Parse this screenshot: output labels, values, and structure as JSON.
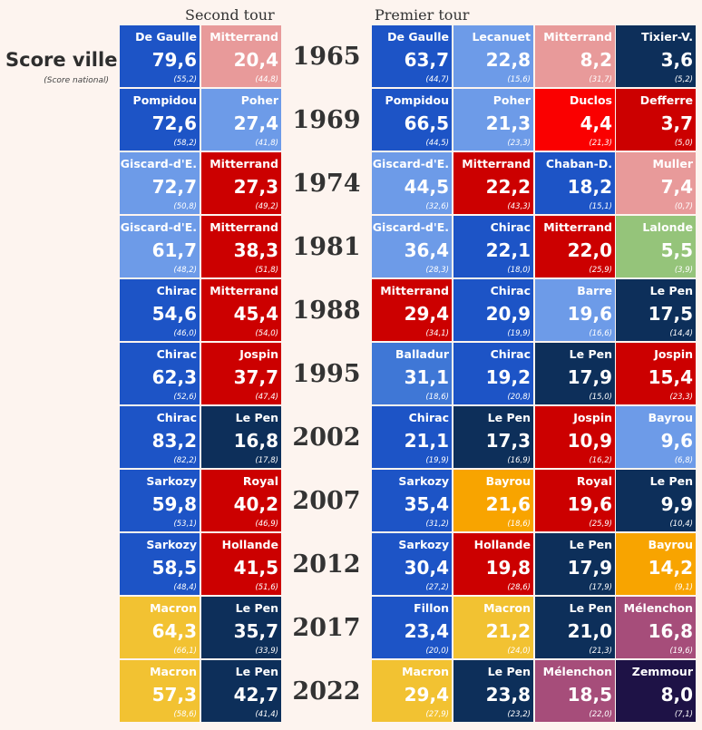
{
  "header": {
    "second_tour": "Second tour",
    "premier_tour": "Premier tour",
    "score_title": "Score ville",
    "score_subtitle": "(Score national)"
  },
  "colors": {
    "blue": "#1d54c6",
    "lightblue": "#6d9be8",
    "midblue": "#3f77d6",
    "pink": "#e89a9a",
    "red": "#cc0000",
    "brightred": "#fa0000",
    "navy": "#0d2f5a",
    "green": "#95c47a",
    "orange": "#f8a400",
    "yellow": "#f2c232",
    "mauve": "#a64d7a",
    "darkpurple": "#1e1246"
  },
  "chart_data": {
    "type": "table",
    "title": "Score ville",
    "subtitle": "(Score national)",
    "rows": [
      {
        "year": "1965",
        "second": [
          {
            "name": "De Gaulle",
            "score": "79,6",
            "nat": "(55,2)",
            "color": "blue"
          },
          {
            "name": "Mitterrand",
            "score": "20,4",
            "nat": "(44,8)",
            "color": "pink"
          }
        ],
        "first": [
          {
            "name": "De Gaulle",
            "score": "63,7",
            "nat": "(44,7)",
            "color": "blue"
          },
          {
            "name": "Lecanuet",
            "score": "22,8",
            "nat": "(15,6)",
            "color": "lightblue"
          },
          {
            "name": "Mitterrand",
            "score": "8,2",
            "nat": "(31,7)",
            "color": "pink"
          },
          {
            "name": "Tixier-V.",
            "score": "3,6",
            "nat": "(5,2)",
            "color": "navy"
          }
        ]
      },
      {
        "year": "1969",
        "second": [
          {
            "name": "Pompidou",
            "score": "72,6",
            "nat": "(58,2)",
            "color": "blue"
          },
          {
            "name": "Poher",
            "score": "27,4",
            "nat": "(41,8)",
            "color": "lightblue"
          }
        ],
        "first": [
          {
            "name": "Pompidou",
            "score": "66,5",
            "nat": "(44,5)",
            "color": "blue"
          },
          {
            "name": "Poher",
            "score": "21,3",
            "nat": "(23,3)",
            "color": "lightblue"
          },
          {
            "name": "Duclos",
            "score": "4,4",
            "nat": "(21,3)",
            "color": "brightred"
          },
          {
            "name": "Defferre",
            "score": "3,7",
            "nat": "(5,0)",
            "color": "red"
          }
        ]
      },
      {
        "year": "1974",
        "second": [
          {
            "name": "Giscard-d'E.",
            "score": "72,7",
            "nat": "(50,8)",
            "color": "lightblue"
          },
          {
            "name": "Mitterrand",
            "score": "27,3",
            "nat": "(49,2)",
            "color": "red"
          }
        ],
        "first": [
          {
            "name": "Giscard-d'E.",
            "score": "44,5",
            "nat": "(32,6)",
            "color": "lightblue"
          },
          {
            "name": "Mitterrand",
            "score": "22,2",
            "nat": "(43,3)",
            "color": "red"
          },
          {
            "name": "Chaban-D.",
            "score": "18,2",
            "nat": "(15,1)",
            "color": "blue"
          },
          {
            "name": "Muller",
            "score": "7,4",
            "nat": "(0,7)",
            "color": "pink"
          }
        ]
      },
      {
        "year": "1981",
        "second": [
          {
            "name": "Giscard-d'E.",
            "score": "61,7",
            "nat": "(48,2)",
            "color": "lightblue"
          },
          {
            "name": "Mitterrand",
            "score": "38,3",
            "nat": "(51,8)",
            "color": "red"
          }
        ],
        "first": [
          {
            "name": "Giscard-d'E.",
            "score": "36,4",
            "nat": "(28,3)",
            "color": "lightblue"
          },
          {
            "name": "Chirac",
            "score": "22,1",
            "nat": "(18,0)",
            "color": "blue"
          },
          {
            "name": "Mitterrand",
            "score": "22,0",
            "nat": "(25,9)",
            "color": "red"
          },
          {
            "name": "Lalonde",
            "score": "5,5",
            "nat": "(3,9)",
            "color": "green"
          }
        ]
      },
      {
        "year": "1988",
        "second": [
          {
            "name": "Chirac",
            "score": "54,6",
            "nat": "(46,0)",
            "color": "blue"
          },
          {
            "name": "Mitterrand",
            "score": "45,4",
            "nat": "(54,0)",
            "color": "red"
          }
        ],
        "first": [
          {
            "name": "Mitterrand",
            "score": "29,4",
            "nat": "(34,1)",
            "color": "red"
          },
          {
            "name": "Chirac",
            "score": "20,9",
            "nat": "(19,9)",
            "color": "blue"
          },
          {
            "name": "Barre",
            "score": "19,6",
            "nat": "(16,6)",
            "color": "lightblue"
          },
          {
            "name": "Le Pen",
            "score": "17,5",
            "nat": "(14,4)",
            "color": "navy"
          }
        ]
      },
      {
        "year": "1995",
        "second": [
          {
            "name": "Chirac",
            "score": "62,3",
            "nat": "(52,6)",
            "color": "blue"
          },
          {
            "name": "Jospin",
            "score": "37,7",
            "nat": "(47,4)",
            "color": "red"
          }
        ],
        "first": [
          {
            "name": "Balladur",
            "score": "31,1",
            "nat": "(18,6)",
            "color": "midblue"
          },
          {
            "name": "Chirac",
            "score": "19,2",
            "nat": "(20,8)",
            "color": "blue"
          },
          {
            "name": "Le Pen",
            "score": "17,9",
            "nat": "(15,0)",
            "color": "navy"
          },
          {
            "name": "Jospin",
            "score": "15,4",
            "nat": "(23,3)",
            "color": "red"
          }
        ]
      },
      {
        "year": "2002",
        "second": [
          {
            "name": "Chirac",
            "score": "83,2",
            "nat": "(82,2)",
            "color": "blue"
          },
          {
            "name": "Le Pen",
            "score": "16,8",
            "nat": "(17,8)",
            "color": "navy"
          }
        ],
        "first": [
          {
            "name": "Chirac",
            "score": "21,1",
            "nat": "(19,9)",
            "color": "blue"
          },
          {
            "name": "Le Pen",
            "score": "17,3",
            "nat": "(16,9)",
            "color": "navy"
          },
          {
            "name": "Jospin",
            "score": "10,9",
            "nat": "(16,2)",
            "color": "red"
          },
          {
            "name": "Bayrou",
            "score": "9,6",
            "nat": "(6,8)",
            "color": "lightblue"
          }
        ]
      },
      {
        "year": "2007",
        "second": [
          {
            "name": "Sarkozy",
            "score": "59,8",
            "nat": "(53,1)",
            "color": "blue"
          },
          {
            "name": "Royal",
            "score": "40,2",
            "nat": "(46,9)",
            "color": "red"
          }
        ],
        "first": [
          {
            "name": "Sarkozy",
            "score": "35,4",
            "nat": "(31,2)",
            "color": "blue"
          },
          {
            "name": "Bayrou",
            "score": "21,6",
            "nat": "(18,6)",
            "color": "orange"
          },
          {
            "name": "Royal",
            "score": "19,6",
            "nat": "(25,9)",
            "color": "red"
          },
          {
            "name": "Le Pen",
            "score": "9,9",
            "nat": "(10,4)",
            "color": "navy"
          }
        ]
      },
      {
        "year": "2012",
        "second": [
          {
            "name": "Sarkozy",
            "score": "58,5",
            "nat": "(48,4)",
            "color": "blue"
          },
          {
            "name": "Hollande",
            "score": "41,5",
            "nat": "(51,6)",
            "color": "red"
          }
        ],
        "first": [
          {
            "name": "Sarkozy",
            "score": "30,4",
            "nat": "(27,2)",
            "color": "blue"
          },
          {
            "name": "Hollande",
            "score": "19,8",
            "nat": "(28,6)",
            "color": "red"
          },
          {
            "name": "Le Pen",
            "score": "17,9",
            "nat": "(17,9)",
            "color": "navy"
          },
          {
            "name": "Bayrou",
            "score": "14,2",
            "nat": "(9,1)",
            "color": "orange"
          }
        ]
      },
      {
        "year": "2017",
        "second": [
          {
            "name": "Macron",
            "score": "64,3",
            "nat": "(66,1)",
            "color": "yellow"
          },
          {
            "name": "Le Pen",
            "score": "35,7",
            "nat": "(33,9)",
            "color": "navy"
          }
        ],
        "first": [
          {
            "name": "Fillon",
            "score": "23,4",
            "nat": "(20,0)",
            "color": "blue"
          },
          {
            "name": "Macron",
            "score": "21,2",
            "nat": "(24,0)",
            "color": "yellow"
          },
          {
            "name": "Le Pen",
            "score": "21,0",
            "nat": "(21,3)",
            "color": "navy"
          },
          {
            "name": "Mélenchon",
            "score": "16,8",
            "nat": "(19,6)",
            "color": "mauve"
          }
        ]
      },
      {
        "year": "2022",
        "second": [
          {
            "name": "Macron",
            "score": "57,3",
            "nat": "(58,6)",
            "color": "yellow"
          },
          {
            "name": "Le Pen",
            "score": "42,7",
            "nat": "(41,4)",
            "color": "navy"
          }
        ],
        "first": [
          {
            "name": "Macron",
            "score": "29,4",
            "nat": "(27,9)",
            "color": "yellow"
          },
          {
            "name": "Le Pen",
            "score": "23,8",
            "nat": "(23,2)",
            "color": "navy"
          },
          {
            "name": "Mélenchon",
            "score": "18,5",
            "nat": "(22,0)",
            "color": "mauve"
          },
          {
            "name": "Zemmour",
            "score": "8,0",
            "nat": "(7,1)",
            "color": "darkpurple"
          }
        ]
      }
    ]
  }
}
